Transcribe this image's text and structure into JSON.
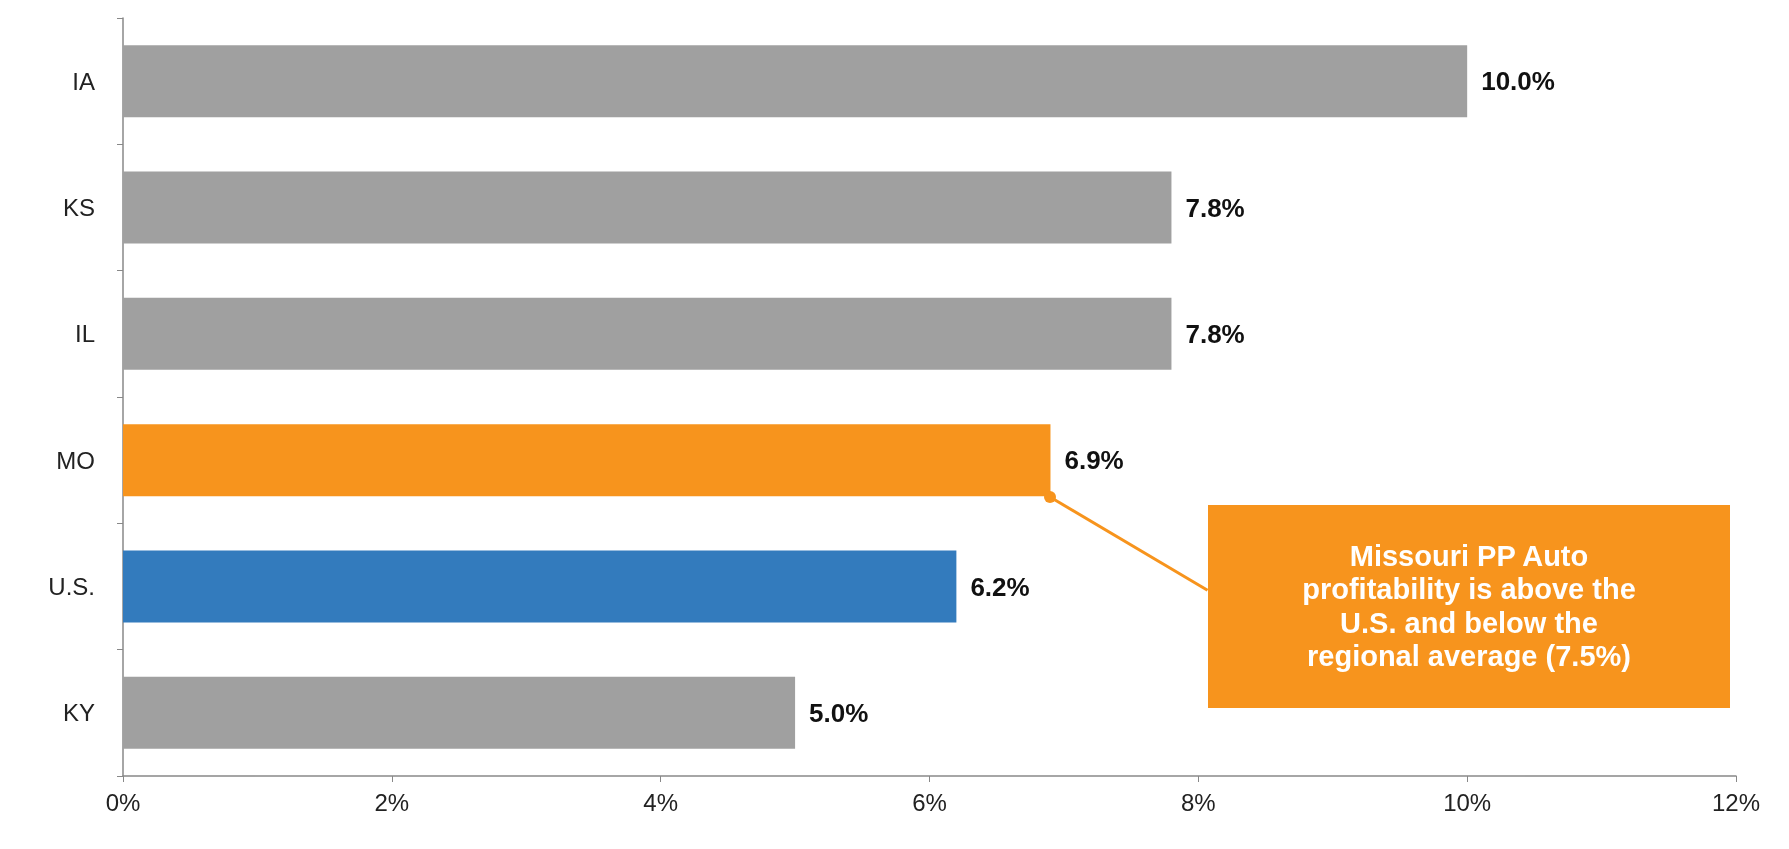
{
  "chart_data": {
    "type": "bar",
    "orientation": "horizontal",
    "categories": [
      "IA",
      "KS",
      "IL",
      "MO",
      "U.S.",
      "KY"
    ],
    "values": [
      10.0,
      7.8,
      7.8,
      6.9,
      6.2,
      5.0
    ],
    "value_labels": [
      "10.0%",
      "7.8%",
      "7.8%",
      "6.9%",
      "6.2%",
      "5.0%"
    ],
    "colors": [
      "#a0a0a0",
      "#a0a0a0",
      "#a0a0a0",
      "#f7941d",
      "#337bbd",
      "#a0a0a0"
    ],
    "xlim": [
      0,
      12
    ],
    "xticks": [
      {
        "value": 0,
        "label": "0%"
      },
      {
        "value": 2,
        "label": "2%"
      },
      {
        "value": 4,
        "label": "4%"
      },
      {
        "value": 6,
        "label": "6%"
      },
      {
        "value": 8,
        "label": "8%"
      },
      {
        "value": 10,
        "label": "10%"
      },
      {
        "value": 12,
        "label": "12%"
      }
    ],
    "annotations": [
      "Missouri PP Auto profitability is above the U.S. and below the regional average (7.5%)"
    ],
    "grid": false
  }
}
